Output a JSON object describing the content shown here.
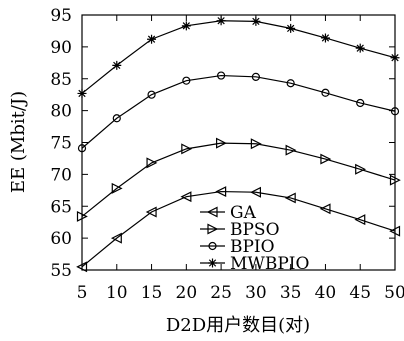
{
  "chart_data": {
    "type": "line",
    "xlabel": "D2D用户数目(对)",
    "ylabel": "EE (Mbit/J)",
    "x": [
      5,
      10,
      15,
      20,
      25,
      30,
      35,
      40,
      45,
      50
    ],
    "xlim": [
      5,
      50
    ],
    "ylim": [
      55,
      95
    ],
    "xticks": [
      5,
      10,
      15,
      20,
      25,
      30,
      35,
      40,
      45,
      50
    ],
    "yticks": [
      55,
      60,
      65,
      70,
      75,
      80,
      85,
      90,
      95
    ],
    "grid": false,
    "legend_position": "bottom-center",
    "series": [
      {
        "name": "GA",
        "marker": "left-triangle",
        "values": [
          55.5,
          60.0,
          64.1,
          66.5,
          67.3,
          67.2,
          66.3,
          64.6,
          62.9,
          61.1
        ]
      },
      {
        "name": "BPSO",
        "marker": "right-triangle",
        "values": [
          63.4,
          67.8,
          71.8,
          74.0,
          74.9,
          74.8,
          73.8,
          72.4,
          70.8,
          69.1
        ]
      },
      {
        "name": "BPIO",
        "marker": "circle",
        "values": [
          74.1,
          78.8,
          82.5,
          84.7,
          85.5,
          85.3,
          84.3,
          82.8,
          81.2,
          79.9
        ]
      },
      {
        "name": "MWBPIO",
        "marker": "star",
        "values": [
          82.7,
          87.1,
          91.2,
          93.3,
          94.1,
          94.0,
          92.9,
          91.4,
          89.8,
          88.3
        ]
      }
    ]
  }
}
